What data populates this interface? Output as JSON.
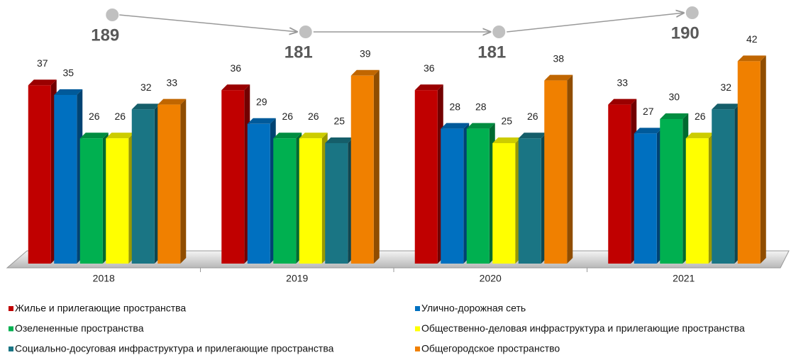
{
  "chart_data": {
    "type": "bar3d",
    "categories": [
      "2018",
      "2019",
      "2020",
      "2021"
    ],
    "series": [
      {
        "name": "Жилье и прилегающие пространства",
        "color": "#c00000",
        "values": [
          37,
          36,
          36,
          33
        ]
      },
      {
        "name": "Улично-дорожная сеть",
        "color": "#0070c0",
        "values": [
          35,
          29,
          28,
          27
        ]
      },
      {
        "name": "Озелененные  пространства",
        "color": "#00b050",
        "values": [
          26,
          26,
          28,
          30
        ]
      },
      {
        "name": "Общественно-деловая инфраструктура и прилегающие пространства",
        "color": "#ffff00",
        "values": [
          26,
          26,
          25,
          26
        ]
      },
      {
        "name": "Социально-досуговая инфраструктура и прилегающие пространства",
        "color": "#1a7584",
        "values": [
          32,
          25,
          26,
          32
        ]
      },
      {
        "name": "Общегородское  пространство",
        "color": "#f08000",
        "values": [
          33,
          39,
          38,
          42
        ]
      }
    ],
    "totals": {
      "color": "#c0c0c0",
      "values": [
        189,
        181,
        181,
        190
      ]
    }
  }
}
